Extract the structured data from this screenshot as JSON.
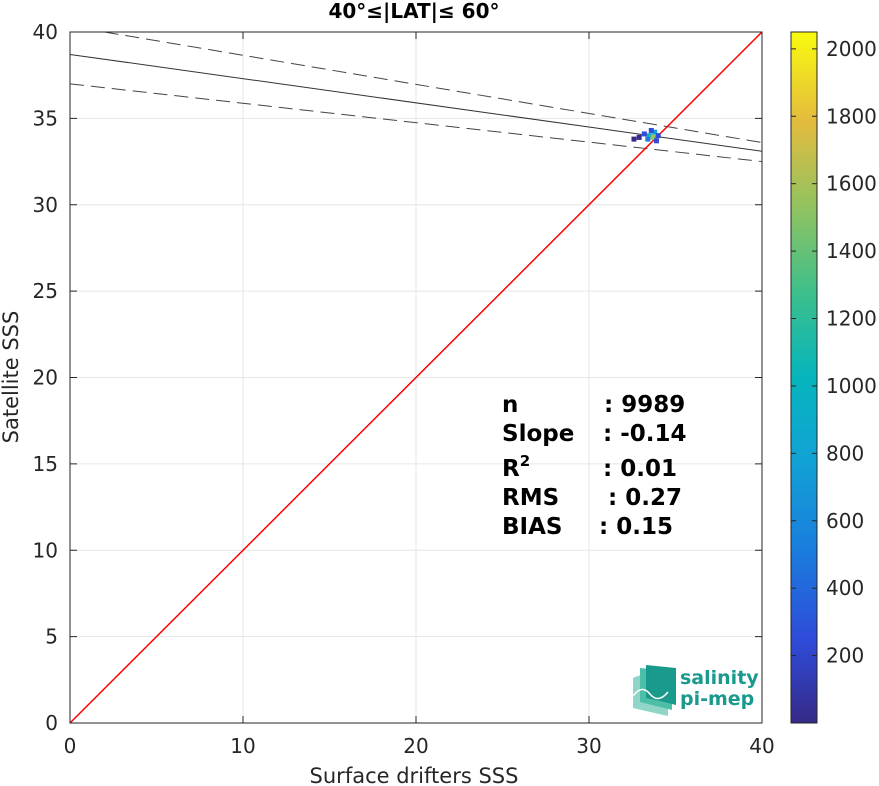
{
  "chart_data": {
    "type": "scatter",
    "title": "40°≤|LAT|≤ 60°",
    "xlabel": "Surface drifters SSS",
    "ylabel": "Satellite SSS",
    "xlim": [
      0,
      40
    ],
    "ylim": [
      0,
      40
    ],
    "x_ticks": [
      0,
      10,
      20,
      30,
      40
    ],
    "y_ticks": [
      0,
      5,
      10,
      15,
      20,
      25,
      30,
      35,
      40
    ],
    "grid": true,
    "identity_line": {
      "color": "#ff0000",
      "x": [
        0,
        40
      ],
      "y": [
        0,
        40
      ]
    },
    "fit_line": {
      "x": [
        0,
        40
      ],
      "y": [
        38.7,
        33.1
      ]
    },
    "fit_upper": {
      "x": [
        2,
        40
      ],
      "y": [
        40.0,
        33.6
      ]
    },
    "fit_lower": {
      "x": [
        0,
        40
      ],
      "y": [
        37.0,
        32.5
      ]
    },
    "density_points": [
      {
        "x": 33.2,
        "y": 34.1,
        "c": 300
      },
      {
        "x": 33.5,
        "y": 34.0,
        "c": 900
      },
      {
        "x": 33.7,
        "y": 33.9,
        "c": 1500
      },
      {
        "x": 33.8,
        "y": 34.2,
        "c": 700
      },
      {
        "x": 33.4,
        "y": 33.8,
        "c": 400
      },
      {
        "x": 32.9,
        "y": 33.9,
        "c": 100
      },
      {
        "x": 33.9,
        "y": 33.7,
        "c": 200
      },
      {
        "x": 32.6,
        "y": 33.8,
        "c": 50
      },
      {
        "x": 34.0,
        "y": 34.0,
        "c": 150
      },
      {
        "x": 33.6,
        "y": 34.3,
        "c": 250
      }
    ],
    "colorbar": {
      "range": [
        0,
        2050
      ],
      "ticks": [
        200,
        400,
        600,
        800,
        1000,
        1200,
        1400,
        1600,
        1800,
        2000
      ],
      "colormap": "parula"
    },
    "stats": [
      {
        "label": "n",
        "value": ": 9989"
      },
      {
        "label": "Slope",
        "value": ": -0.14"
      },
      {
        "label": "R",
        "sup": "2",
        "value": ": 0.01"
      },
      {
        "label": "RMS",
        "value": ": 0.27"
      },
      {
        "label": "BIAS",
        "value": ": 0.15"
      }
    ]
  },
  "logo": {
    "line1": "salinity",
    "line2": "pi-mep"
  }
}
